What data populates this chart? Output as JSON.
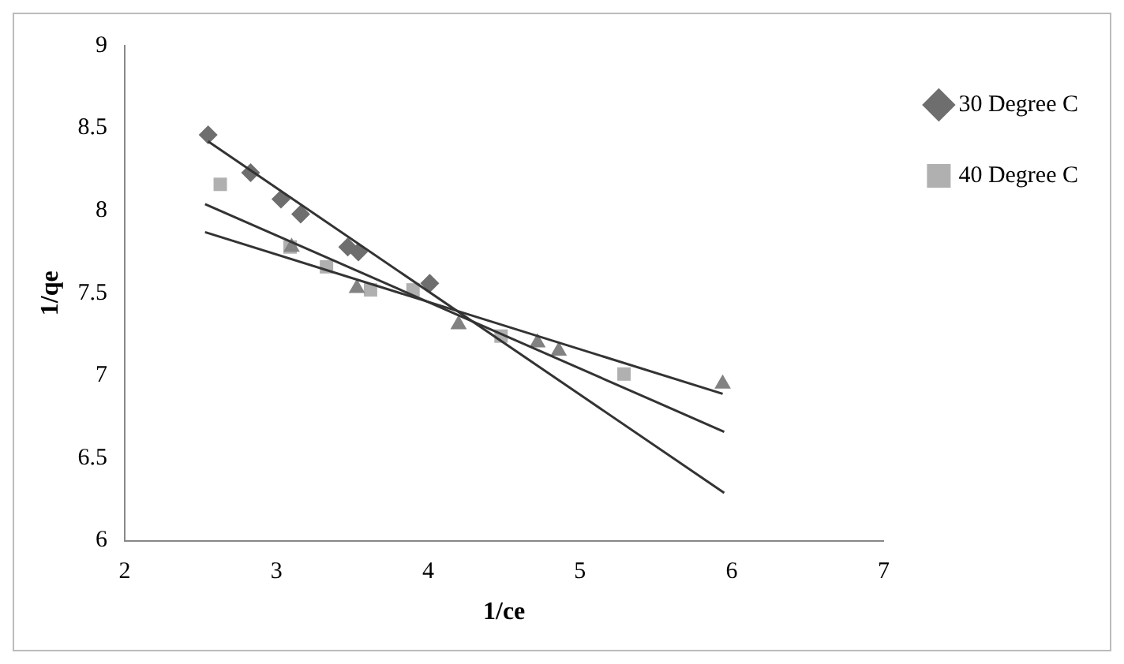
{
  "chart_data": {
    "type": "scatter",
    "xlabel": "1/ce",
    "ylabel": "1/qe",
    "xlim": [
      2,
      7
    ],
    "xticks": [
      2,
      3,
      4,
      5,
      6,
      7
    ],
    "ylim": [
      6,
      9
    ],
    "yticks": [
      6,
      6.5,
      7,
      7.5,
      8,
      8.5,
      9
    ],
    "grid": false,
    "legend": "top right",
    "series": [
      {
        "name": "30 Degree C",
        "color": "#6e6e6e",
        "marker": "diamond",
        "x": [
          2.55,
          2.83,
          3.03,
          3.16,
          3.47,
          3.54,
          4.01
        ],
        "values": [
          8.46,
          8.23,
          8.07,
          7.98,
          7.78,
          7.75,
          7.56
        ]
      },
      {
        "name": "40 Degree C",
        "color": "#b0b0b0",
        "marker": "square",
        "x": [
          2.63,
          3.09,
          3.33,
          3.62,
          3.9,
          4.48,
          5.29
        ],
        "values": [
          8.16,
          7.78,
          7.66,
          7.52,
          7.52,
          7.24,
          7.01
        ]
      },
      {
        "color": "#828282",
        "marker": "triangle",
        "x": [
          3.1,
          3.53,
          4.2,
          4.72,
          4.86,
          5.94
        ],
        "values": [
          7.78,
          7.53,
          7.31,
          7.2,
          7.15,
          6.95
        ]
      },
      {
        "type": "line",
        "color": "#333333",
        "marker": "none",
        "x": [
          2.55,
          5.95
        ],
        "values": [
          8.42,
          6.29
        ]
      },
      {
        "type": "line",
        "color": "#333333",
        "marker": "none",
        "x": [
          2.53,
          5.95
        ],
        "values": [
          8.04,
          6.66
        ]
      },
      {
        "type": "line",
        "color": "#333333",
        "marker": "none",
        "x": [
          2.53,
          5.94
        ],
        "values": [
          7.87,
          6.89
        ]
      }
    ]
  }
}
